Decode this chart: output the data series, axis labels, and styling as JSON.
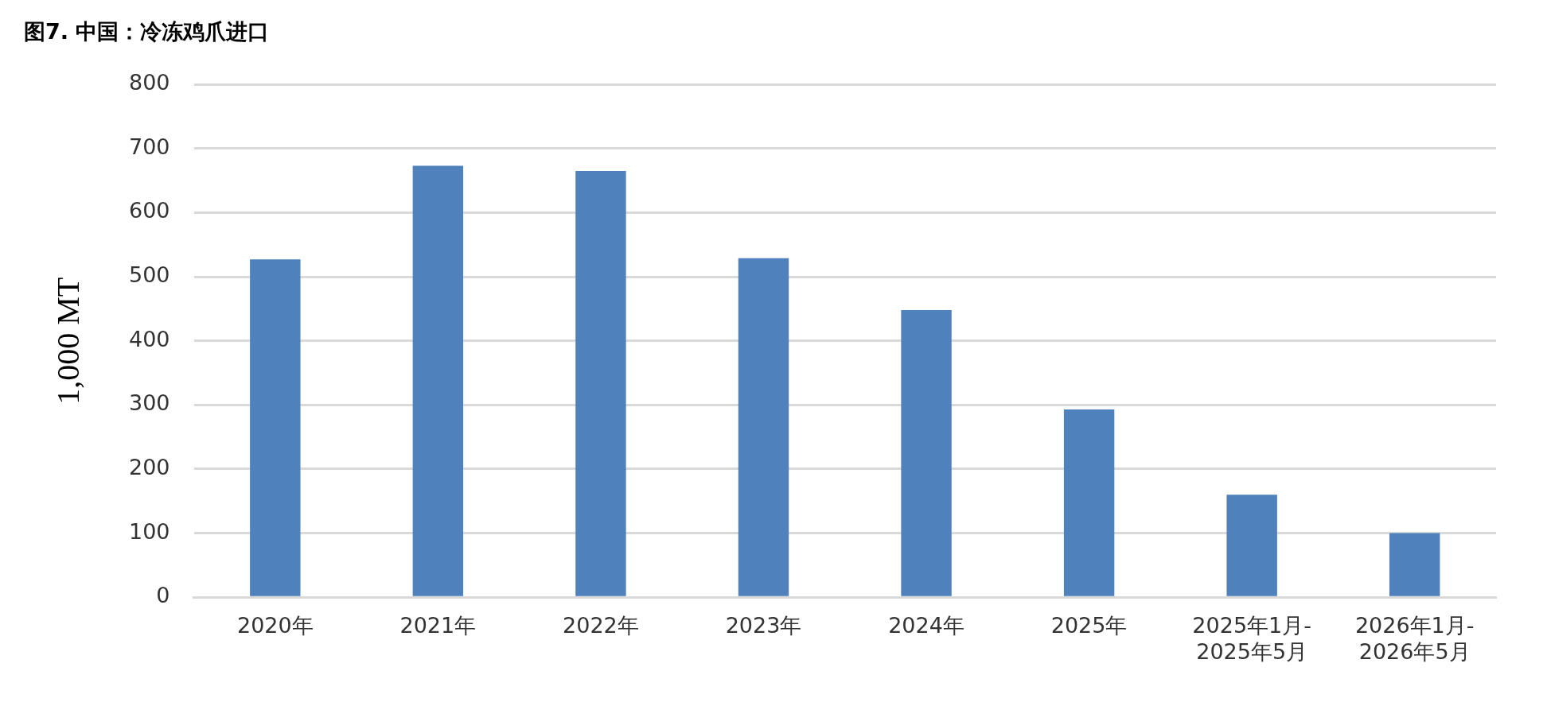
{
  "chart_data": {
    "type": "bar",
    "title": "图7. 中国：冷冻鸡爪进口",
    "ylabel": "1,000 MT",
    "categories": [
      "2020年",
      "2021年",
      "2022年",
      "2023年",
      "2024年",
      "2025年",
      "2025年1月-\n2025年5月",
      "2026年1月-\n2026年5月"
    ],
    "values": [
      527,
      673,
      665,
      529,
      448,
      293,
      160,
      100
    ],
    "color": "#4f81bd",
    "ylim": [
      0,
      800
    ],
    "yticks": [
      0,
      100,
      200,
      300,
      400,
      500,
      600,
      700,
      800
    ],
    "grid": "y",
    "legend": false
  }
}
